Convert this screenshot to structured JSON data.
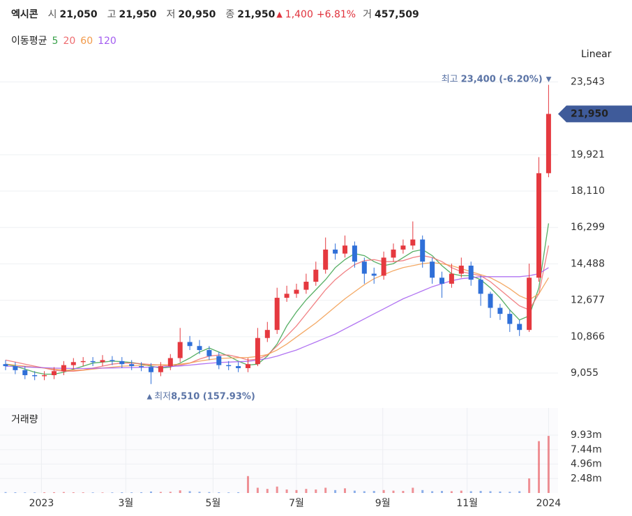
{
  "header": {
    "name": "엑시콘",
    "fields": [
      {
        "label": "시",
        "value": "21,050"
      },
      {
        "label": "고",
        "value": "21,950"
      },
      {
        "label": "저",
        "value": "20,950"
      },
      {
        "label": "종",
        "value": "21,950"
      }
    ],
    "change_arrow": "▲",
    "change": "1,400",
    "change_pct": "+6.81%",
    "volume_label": "거",
    "volume": "457,509"
  },
  "chart_data": [
    {
      "type": "candlestick",
      "legend_title": "이동평균",
      "scale_label": "Linear",
      "log_scale": false,
      "grid": true,
      "up_color": "#e5393f",
      "down_color": "#2f6fd8",
      "open": [
        9500,
        9400,
        9200,
        8950,
        8900,
        8950,
        9150,
        9450,
        9600,
        9650,
        9600,
        9700,
        9650,
        9500,
        9400,
        9350,
        9100,
        9400,
        9800,
        10600,
        10400,
        10200,
        9900,
        9450,
        9400,
        9300,
        9500,
        10800,
        11200,
        12800,
        13000,
        13200,
        13600,
        14200,
        15200,
        15000,
        15400,
        14600,
        14000,
        13900,
        14800,
        15200,
        15400,
        15700,
        14600,
        13800,
        13500,
        14000,
        14400,
        13700,
        13000,
        12300,
        12000,
        11500,
        11200,
        13800,
        19000
      ],
      "high": [
        9700,
        9600,
        9400,
        9150,
        9150,
        9350,
        9650,
        9800,
        9850,
        9850,
        9950,
        9900,
        9850,
        9700,
        9600,
        9550,
        9600,
        10000,
        11300,
        10900,
        10700,
        10400,
        10100,
        9650,
        9600,
        9800,
        11300,
        11600,
        13300,
        13400,
        13500,
        14000,
        14600,
        15800,
        15500,
        15900,
        15600,
        14800,
        14300,
        15100,
        15500,
        15700,
        16600,
        15900,
        14800,
        14100,
        14500,
        14800,
        14600,
        13900,
        13100,
        12500,
        12200,
        11700,
        14500,
        19800,
        23400
      ],
      "low": [
        9200,
        9000,
        8750,
        8700,
        8700,
        8750,
        8950,
        9250,
        9400,
        9400,
        9400,
        9450,
        9300,
        9200,
        9150,
        8510,
        8900,
        9200,
        9600,
        10200,
        10000,
        9700,
        9250,
        9200,
        9100,
        9100,
        9400,
        10600,
        11000,
        12600,
        12800,
        13000,
        13400,
        14000,
        14700,
        14800,
        14300,
        13500,
        13500,
        13700,
        14600,
        15000,
        15200,
        14300,
        13500,
        12800,
        13300,
        13800,
        13400,
        12400,
        11800,
        11700,
        11100,
        10900,
        11100,
        13600,
        18800
      ],
      "close": [
        9400,
        9200,
        8950,
        8900,
        8950,
        9150,
        9450,
        9600,
        9650,
        9600,
        9700,
        9650,
        9500,
        9400,
        9350,
        9100,
        9400,
        9800,
        10600,
        10400,
        10200,
        9900,
        9450,
        9400,
        9300,
        9500,
        10800,
        11200,
        12800,
        13000,
        13200,
        13600,
        14200,
        15200,
        15000,
        15400,
        14600,
        14000,
        13900,
        14800,
        15200,
        15400,
        15700,
        14600,
        13800,
        13500,
        14000,
        14400,
        13700,
        13000,
        12300,
        12000,
        11500,
        11200,
        13800,
        19000,
        21950
      ],
      "series": [
        {
          "name": "5",
          "color": "#3aa14a",
          "values": [
            9500,
            9400,
            9250,
            9100,
            9000,
            9000,
            9100,
            9250,
            9400,
            9550,
            9600,
            9650,
            9620,
            9580,
            9500,
            9400,
            9300,
            9350,
            9550,
            9800,
            10100,
            10300,
            10100,
            9900,
            9650,
            9450,
            9500,
            9900,
            10500,
            11400,
            12100,
            12700,
            13200,
            13700,
            14300,
            14700,
            15000,
            14900,
            14600,
            14400,
            14500,
            14800,
            15100,
            15200,
            14900,
            14400,
            14000,
            13900,
            13900,
            13700,
            13300,
            12800,
            12200,
            11700,
            11900,
            13300,
            16500
          ]
        },
        {
          "name": "20",
          "color": "#ee6b6e",
          "values": [
            9700,
            9600,
            9500,
            9400,
            9300,
            9200,
            9150,
            9150,
            9200,
            9300,
            9400,
            9500,
            9550,
            9550,
            9520,
            9480,
            9450,
            9400,
            9450,
            9550,
            9750,
            9900,
            9950,
            9950,
            9850,
            9700,
            9750,
            9950,
            10400,
            10900,
            11400,
            12000,
            12600,
            13200,
            13700,
            14100,
            14450,
            14650,
            14700,
            14600,
            14600,
            14650,
            14800,
            14900,
            14800,
            14600,
            14300,
            14100,
            14000,
            13900,
            13600,
            13200,
            12800,
            12400,
            12200,
            13000,
            15400
          ]
        },
        {
          "name": "60",
          "color": "#f29a4a",
          "values": [
            9500,
            9450,
            9400,
            9350,
            9300,
            9250,
            9200,
            9200,
            9200,
            9250,
            9300,
            9350,
            9400,
            9420,
            9440,
            9450,
            9460,
            9470,
            9500,
            9560,
            9650,
            9720,
            9780,
            9800,
            9820,
            9830,
            9880,
            9980,
            10200,
            10500,
            10850,
            11200,
            11550,
            11950,
            12350,
            12750,
            13100,
            13450,
            13750,
            13950,
            14150,
            14300,
            14400,
            14500,
            14550,
            14500,
            14400,
            14250,
            14100,
            13950,
            13800,
            13550,
            13250,
            12900,
            12700,
            13000,
            13800
          ]
        },
        {
          "name": "120",
          "color": "#a35cf0",
          "values": [
            9400,
            9380,
            9360,
            9340,
            9320,
            9300,
            9290,
            9280,
            9280,
            9290,
            9300,
            9310,
            9320,
            9330,
            9340,
            9350,
            9360,
            9380,
            9410,
            9450,
            9500,
            9540,
            9580,
            9600,
            9620,
            9640,
            9700,
            9780,
            9900,
            10050,
            10200,
            10400,
            10600,
            10800,
            11000,
            11250,
            11500,
            11750,
            12000,
            12250,
            12500,
            12750,
            12950,
            13150,
            13350,
            13500,
            13650,
            13750,
            13800,
            13850,
            13850,
            13850,
            13850,
            13850,
            13900,
            14000,
            14300
          ]
        }
      ],
      "ylim": [
        7494,
        24669
      ],
      "yticks": [
        {
          "value": 9055,
          "label": "9,055"
        },
        {
          "value": 10866,
          "label": "10,866"
        },
        {
          "value": 12677,
          "label": "12,677"
        },
        {
          "value": 14488,
          "label": "14,488"
        },
        {
          "value": 16299,
          "label": "16,299"
        },
        {
          "value": 18110,
          "label": "18,110"
        },
        {
          "value": 19921,
          "label": "19,921"
        },
        {
          "value": 23543,
          "label": "23,543"
        }
      ],
      "last_label": "21,950",
      "last_color": "#3f5b9a",
      "max_annotation": {
        "label": "최고",
        "text": "23,400 (-6.20%)",
        "arrow": "▼"
      },
      "min_annotation": {
        "arrow": "▲",
        "label": "최저",
        "text": "8,510 (157.93%)"
      }
    },
    {
      "type": "bar",
      "title": "거래량",
      "grid": true,
      "values": [
        150000,
        120000,
        100000,
        90000,
        110000,
        130000,
        160000,
        120000,
        110000,
        100000,
        90000,
        100000,
        120000,
        110000,
        130000,
        250000,
        180000,
        200000,
        450000,
        300000,
        200000,
        150000,
        120000,
        100000,
        130000,
        2900000,
        900000,
        700000,
        1100000,
        600000,
        500000,
        700000,
        600000,
        900000,
        500000,
        800000,
        400000,
        300000,
        350000,
        500000,
        400000,
        350000,
        900000,
        500000,
        300000,
        350000,
        300000,
        400000,
        300000,
        350000,
        300000,
        250000,
        200000,
        300000,
        2500000,
        8900000,
        9800000
      ],
      "ylim": [
        0,
        14600000
      ],
      "yticks": [
        {
          "value": 2480000,
          "label": "2.48m"
        },
        {
          "value": 4960000,
          "label": "4.96m"
        },
        {
          "value": 7440000,
          "label": "7.44m"
        },
        {
          "value": 9930000,
          "label": "9.93m"
        }
      ],
      "xticks": [
        {
          "value": 3.7,
          "label": "2023"
        },
        {
          "value": 12.4,
          "label": "3월"
        },
        {
          "value": 21.4,
          "label": "5월"
        },
        {
          "value": 30,
          "label": "7월"
        },
        {
          "value": 38.9,
          "label": "9월"
        },
        {
          "value": 47.6,
          "label": "11월"
        },
        {
          "value": 56,
          "label": "2024"
        }
      ]
    }
  ]
}
